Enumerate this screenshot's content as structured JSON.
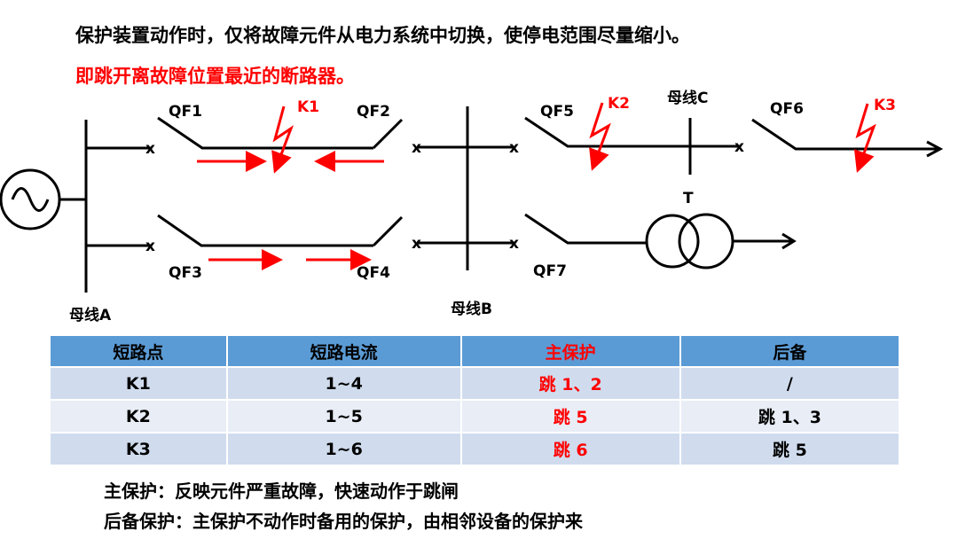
{
  "heading": {
    "line1": "保护装置动作时，仅将故障元件从电力系统中切换，使停电范围尽量缩小。",
    "line2": "即跳开离故障位置最近的断路器。"
  },
  "diagram": {
    "breakers": [
      "QF1",
      "QF2",
      "QF3",
      "QF4",
      "QF5",
      "QF6",
      "QF7"
    ],
    "faults": [
      "K1",
      "K2",
      "K3"
    ],
    "buses": [
      "母线A",
      "母线B",
      "母线C"
    ],
    "transformer": "T",
    "fault_color": "#ff0000"
  },
  "table": {
    "headers": [
      "短路点",
      "短路电流",
      "主保护",
      "后备"
    ],
    "rows": [
      [
        "K1",
        "1~4",
        "跳 1、2",
        "/"
      ],
      [
        "K2",
        "1~5",
        "跳  5",
        "跳 1、3"
      ],
      [
        "K3",
        "1~6",
        "跳  6",
        "跳  5"
      ]
    ],
    "header_color": "#5b9bd5"
  },
  "notes": [
    "主保护：反映元件严重故障，快速动作于跳闸",
    "后备保护：主保护不动作时备用的保护，由相邻设备的保护来"
  ]
}
